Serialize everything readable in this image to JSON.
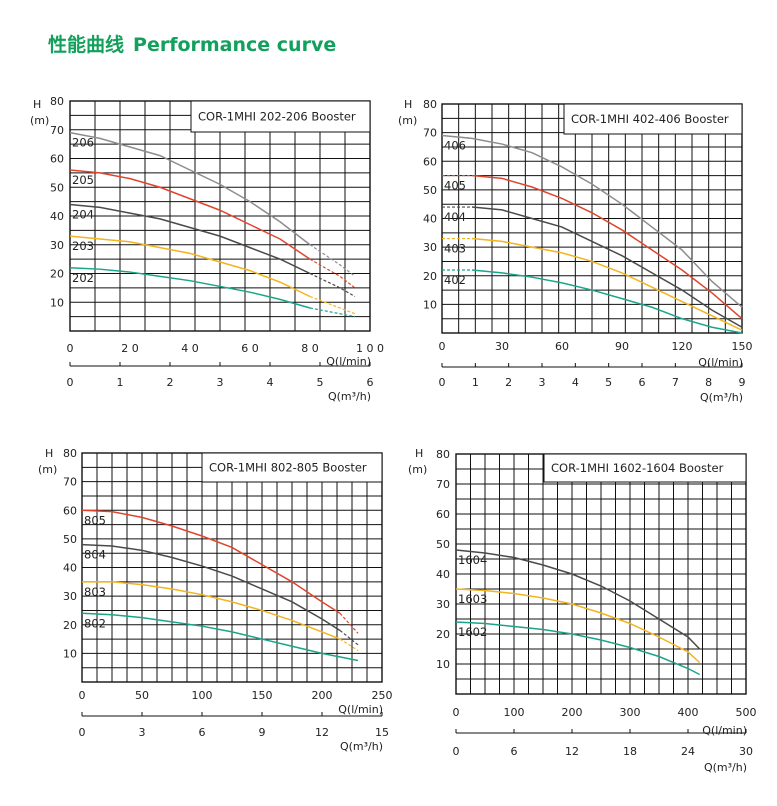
{
  "header": {
    "title_cn": "性能曲线",
    "title_en": "Performance curve"
  },
  "colors": {
    "title": "#12a05c",
    "grid": "#111111",
    "curves": {
      "gray": "#8d8d8d",
      "red": "#e0452c",
      "dark": "#4a4a4a",
      "yellow": "#f2b41f",
      "green": "#19a58a"
    }
  },
  "chart_data": [
    {
      "type": "line",
      "title": "COR-1MHI 202-206 Booster",
      "ylabel_top": "H",
      "ylabel_unit": "(m)",
      "yticks": [
        "10",
        "20",
        "30",
        "40",
        "50",
        "60",
        "70",
        "80"
      ],
      "ylim": [
        0,
        80
      ],
      "x": {
        "label": "Q(l/min)",
        "ticks": [
          "0",
          "2 0",
          "4 0",
          "6 0",
          "8 0",
          "1 0 0"
        ],
        "lim": [
          0,
          100
        ]
      },
      "x2": {
        "label": "Q(m³/h)",
        "ticks": [
          "0",
          "1",
          "2",
          "3",
          "4",
          "5",
          "6"
        ],
        "lim": [
          0,
          6
        ]
      },
      "series": [
        {
          "name": "206",
          "color": "gray",
          "points": [
            [
              0,
              69
            ],
            [
              10,
              67
            ],
            [
              20,
              64
            ],
            [
              30,
              61
            ],
            [
              40,
              56
            ],
            [
              50,
              51
            ],
            [
              60,
              45
            ],
            [
              70,
              38
            ],
            [
              80,
              30
            ]
          ],
          "dashed": [
            [
              80,
              30
            ],
            [
              90,
              23
            ],
            [
              95,
              19
            ]
          ]
        },
        {
          "name": "205",
          "color": "red",
          "points": [
            [
              0,
              56
            ],
            [
              10,
              55
            ],
            [
              20,
              53
            ],
            [
              30,
              50
            ],
            [
              40,
              46
            ],
            [
              50,
              42
            ],
            [
              60,
              37
            ],
            [
              70,
              32
            ],
            [
              80,
              25
            ]
          ],
          "dashed": [
            [
              80,
              25
            ],
            [
              90,
              19
            ],
            [
              95,
              15
            ]
          ]
        },
        {
          "name": "204",
          "color": "dark",
          "points": [
            [
              0,
              44
            ],
            [
              10,
              43
            ],
            [
              20,
              41
            ],
            [
              30,
              39
            ],
            [
              40,
              36
            ],
            [
              50,
              33
            ],
            [
              60,
              29
            ],
            [
              70,
              25
            ],
            [
              80,
              20
            ]
          ],
          "dashed": [
            [
              80,
              20
            ],
            [
              90,
              15
            ],
            [
              95,
              12
            ]
          ]
        },
        {
          "name": "203",
          "color": "yellow",
          "points": [
            [
              0,
              33
            ],
            [
              10,
              32
            ],
            [
              20,
              31
            ],
            [
              30,
              29
            ],
            [
              40,
              27
            ],
            [
              50,
              24
            ],
            [
              60,
              21
            ],
            [
              70,
              17
            ],
            [
              80,
              12
            ]
          ],
          "dashed": [
            [
              80,
              12
            ],
            [
              90,
              8
            ],
            [
              95,
              6
            ]
          ]
        },
        {
          "name": "202",
          "color": "green",
          "points": [
            [
              0,
              22
            ],
            [
              10,
              21.5
            ],
            [
              20,
              20.5
            ],
            [
              30,
              19
            ],
            [
              40,
              17.5
            ],
            [
              50,
              15.5
            ],
            [
              60,
              13.5
            ],
            [
              70,
              11
            ],
            [
              80,
              8
            ]
          ],
          "dashed": [
            [
              80,
              8
            ],
            [
              90,
              6
            ],
            [
              95,
              5
            ]
          ]
        }
      ]
    },
    {
      "type": "line",
      "title": "COR-1MHI 402-406 Booster",
      "ylabel_top": "H",
      "ylabel_unit": "(m)",
      "yticks": [
        "10",
        "20",
        "30",
        "40",
        "50",
        "60",
        "70",
        "80"
      ],
      "ylim": [
        0,
        80
      ],
      "x": {
        "label": "Q(l/min)",
        "ticks": [
          "0",
          "30",
          "60",
          "90",
          "120",
          "150"
        ],
        "lim": [
          0,
          150
        ]
      },
      "x2": {
        "label": "Q(m³/h)",
        "ticks": [
          "0",
          "1",
          "2",
          "3",
          "4",
          "5",
          "6",
          "7",
          "8",
          "9"
        ],
        "lim": [
          0,
          9
        ]
      },
      "series": [
        {
          "name": "406",
          "color": "gray",
          "points": [
            [
              0,
              69
            ],
            [
              15,
              68
            ],
            [
              30,
              66
            ],
            [
              45,
              63
            ],
            [
              60,
              58
            ],
            [
              75,
              52
            ],
            [
              90,
              45
            ],
            [
              105,
              37
            ],
            [
              120,
              29
            ],
            [
              135,
              18
            ],
            [
              150,
              9
            ]
          ],
          "dashed": [
            [
              0,
              69
            ],
            [
              15,
              68
            ]
          ]
        },
        {
          "name": "405",
          "color": "red",
          "points": [
            [
              15,
              55
            ],
            [
              30,
              54
            ],
            [
              45,
              51
            ],
            [
              60,
              47
            ],
            [
              75,
              42
            ],
            [
              90,
              36
            ],
            [
              105,
              29
            ],
            [
              120,
              22
            ],
            [
              135,
              14
            ],
            [
              150,
              5
            ]
          ],
          "dashed": [
            [
              0,
              55
            ],
            [
              15,
              55
            ]
          ]
        },
        {
          "name": "404",
          "color": "dark",
          "points": [
            [
              15,
              44
            ],
            [
              30,
              43
            ],
            [
              45,
              40
            ],
            [
              60,
              37
            ],
            [
              75,
              32
            ],
            [
              90,
              27
            ],
            [
              105,
              21
            ],
            [
              120,
              15
            ],
            [
              135,
              8
            ],
            [
              150,
              2
            ]
          ],
          "dashed": [
            [
              0,
              44
            ],
            [
              15,
              44
            ]
          ]
        },
        {
          "name": "403",
          "color": "yellow",
          "points": [
            [
              15,
              33
            ],
            [
              30,
              32
            ],
            [
              45,
              30
            ],
            [
              60,
              28
            ],
            [
              75,
              25
            ],
            [
              90,
              21
            ],
            [
              105,
              16
            ],
            [
              120,
              11
            ],
            [
              135,
              6
            ],
            [
              150,
              1
            ]
          ],
          "dashed": [
            [
              0,
              33
            ],
            [
              15,
              33
            ]
          ]
        },
        {
          "name": "402",
          "color": "green",
          "points": [
            [
              15,
              22
            ],
            [
              30,
              21
            ],
            [
              45,
              19.5
            ],
            [
              60,
              17.5
            ],
            [
              75,
              15
            ],
            [
              90,
              12
            ],
            [
              105,
              9
            ],
            [
              120,
              5
            ],
            [
              135,
              2
            ],
            [
              150,
              0
            ]
          ],
          "dashed": [
            [
              0,
              22
            ],
            [
              15,
              22
            ]
          ]
        }
      ]
    },
    {
      "type": "line",
      "title": "COR-1MHI 802-805 Booster",
      "ylabel_top": "H",
      "ylabel_unit": "(m)",
      "yticks": [
        "10",
        "20",
        "30",
        "40",
        "50",
        "60",
        "70",
        "80"
      ],
      "ylim": [
        0,
        80
      ],
      "x": {
        "label": "Q(l/min)",
        "ticks": [
          "0",
          "50",
          "100",
          "150",
          "200",
          "250"
        ],
        "lim": [
          0,
          250
        ]
      },
      "x2": {
        "label": "Q(m³/h)",
        "ticks": [
          "0",
          "3",
          "6",
          "9",
          "12",
          "15"
        ],
        "lim": [
          0,
          15
        ]
      },
      "series": [
        {
          "name": "805",
          "color": "red",
          "points": [
            [
              0,
              60
            ],
            [
              25,
              59.5
            ],
            [
              50,
              57.5
            ],
            [
              75,
              54.5
            ],
            [
              100,
              51
            ],
            [
              125,
              47
            ],
            [
              150,
              41
            ],
            [
              175,
              35
            ],
            [
              200,
              28
            ],
            [
              215,
              24
            ]
          ],
          "dashed": [
            [
              215,
              24
            ],
            [
              230,
              17
            ]
          ]
        },
        {
          "name": "804",
          "color": "dark",
          "points": [
            [
              0,
              48
            ],
            [
              25,
              47.5
            ],
            [
              50,
              46
            ],
            [
              75,
              43.5
            ],
            [
              100,
              40.5
            ],
            [
              125,
              37
            ],
            [
              150,
              32.5
            ],
            [
              175,
              28
            ],
            [
              200,
              22
            ],
            [
              215,
              18
            ]
          ],
          "dashed": [
            [
              215,
              18
            ],
            [
              230,
              13
            ]
          ]
        },
        {
          "name": "803",
          "color": "yellow",
          "points": [
            [
              0,
              35
            ],
            [
              25,
              35
            ],
            [
              50,
              34
            ],
            [
              75,
              32.5
            ],
            [
              100,
              30.5
            ],
            [
              125,
              28
            ],
            [
              150,
              25
            ],
            [
              175,
              21.5
            ],
            [
              200,
              17.5
            ],
            [
              215,
              15
            ]
          ],
          "dashed": [
            [
              215,
              15
            ],
            [
              230,
              11
            ]
          ]
        },
        {
          "name": "802",
          "color": "green",
          "points": [
            [
              0,
              24
            ],
            [
              25,
              23.5
            ],
            [
              50,
              22.5
            ],
            [
              75,
              21
            ],
            [
              100,
              19.5
            ],
            [
              125,
              17.5
            ],
            [
              150,
              15
            ],
            [
              175,
              12.5
            ],
            [
              200,
              10
            ],
            [
              230,
              7.5
            ]
          ],
          "dashed": []
        }
      ]
    },
    {
      "type": "line",
      "title": "COR-1MHI 1602-1604 Booster",
      "ylabel_top": "H",
      "ylabel_unit": "(m)",
      "yticks": [
        "10",
        "20",
        "30",
        "40",
        "50",
        "60",
        "70",
        "80"
      ],
      "ylim": [
        0,
        80
      ],
      "x": {
        "label": "Q(l/min)",
        "ticks": [
          "0",
          "100",
          "200",
          "300",
          "400",
          "500"
        ],
        "lim": [
          0,
          500
        ]
      },
      "x2": {
        "label": "Q(m³/h)",
        "ticks": [
          "0",
          "6",
          "12",
          "18",
          "24",
          "30"
        ],
        "lim": [
          0,
          30
        ]
      },
      "series": [
        {
          "name": "1604",
          "color": "dark",
          "points": [
            [
              0,
              48
            ],
            [
              50,
              47
            ],
            [
              100,
              45.5
            ],
            [
              150,
              43
            ],
            [
              200,
              40
            ],
            [
              250,
              36
            ],
            [
              300,
              31
            ],
            [
              350,
              25
            ],
            [
              400,
              19
            ],
            [
              420,
              15
            ]
          ],
          "dashed": []
        },
        {
          "name": "1603",
          "color": "yellow",
          "points": [
            [
              0,
              35
            ],
            [
              50,
              34.5
            ],
            [
              100,
              33.5
            ],
            [
              150,
              32
            ],
            [
              200,
              30
            ],
            [
              250,
              27
            ],
            [
              300,
              23.5
            ],
            [
              350,
              19
            ],
            [
              400,
              14
            ],
            [
              420,
              10.5
            ]
          ],
          "dashed": []
        },
        {
          "name": "1602",
          "color": "green",
          "points": [
            [
              0,
              24
            ],
            [
              50,
              23.5
            ],
            [
              100,
              22.5
            ],
            [
              150,
              21.5
            ],
            [
              200,
              20
            ],
            [
              250,
              18
            ],
            [
              300,
              15.5
            ],
            [
              350,
              12.5
            ],
            [
              400,
              8.5
            ],
            [
              420,
              6.5
            ]
          ],
          "dashed": []
        }
      ]
    }
  ]
}
